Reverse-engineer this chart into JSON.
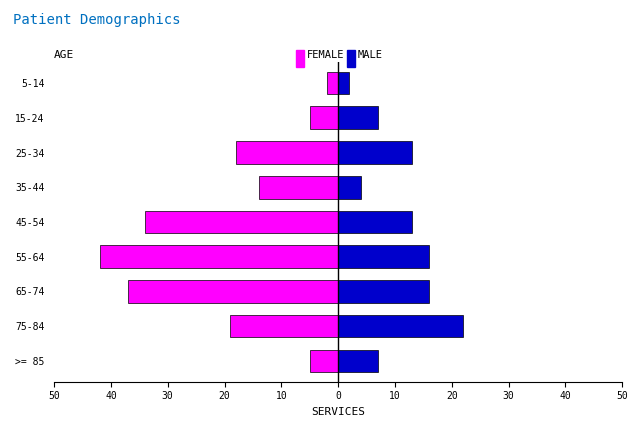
{
  "title": "Patient Demographics",
  "title_color": "#0070C0",
  "age_labels": [
    "5-14",
    "15-24",
    "25-34",
    "35-44",
    "45-54",
    "55-64",
    "65-74",
    "75-84",
    ">= 85"
  ],
  "female_values": [
    2,
    5,
    18,
    14,
    34,
    42,
    37,
    19,
    5
  ],
  "male_values": [
    2,
    7,
    13,
    4,
    13,
    16,
    16,
    22,
    7
  ],
  "female_color": "#FF00FF",
  "male_color": "#0000CC",
  "xlim": 50,
  "xlabel": "SERVICES",
  "age_label": "AGE",
  "legend_female": "FEMALE",
  "legend_male": "MALE",
  "bar_height": 0.65,
  "background_color": "#FFFFFF",
  "axis_color": "#000000",
  "font_name": "monospace"
}
